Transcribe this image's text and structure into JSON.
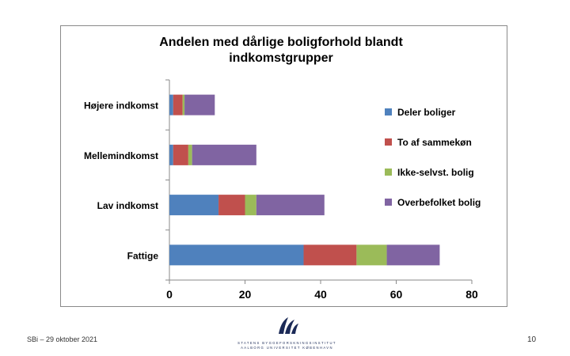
{
  "chart_data": {
    "type": "bar",
    "orientation": "horizontal",
    "stacked": true,
    "title": "Andelen med dårlige boligforhold blandt indkomstgrupper",
    "title_lines": [
      "Andelen med dårlige boligforhold blandt",
      "indkomstgrupper"
    ],
    "categories": [
      "Højere indkomst",
      "Mellemindkomst",
      "Lav indkomst",
      "Fattige"
    ],
    "series": [
      {
        "name": "Deler boliger",
        "color": "#4f81bd",
        "values": [
          1,
          1,
          13,
          35.5
        ]
      },
      {
        "name": "To af sammekøn",
        "color": "#c0504d",
        "values": [
          2.5,
          4,
          7,
          14
        ]
      },
      {
        "name": "Ikke-selvst. bolig",
        "color": "#9bbb59",
        "values": [
          0.5,
          1,
          3,
          8
        ]
      },
      {
        "name": "Overbefolket bolig",
        "color": "#8064a2",
        "values": [
          8,
          17,
          18,
          14
        ]
      }
    ],
    "xlim": [
      0,
      80
    ],
    "xticks": [
      0,
      20,
      40,
      60,
      80
    ],
    "xlabel": "",
    "ylabel": "",
    "grid": false,
    "legend_position": "right"
  },
  "footer": {
    "left_text": "SBi – 29 oktober 2021",
    "page_number": "10",
    "logo_line1": "STATENS BYGGEFORSKNINGSINSTITUT",
    "logo_line2": "AALBORG UNIVERSITET KØBENHAVN"
  }
}
